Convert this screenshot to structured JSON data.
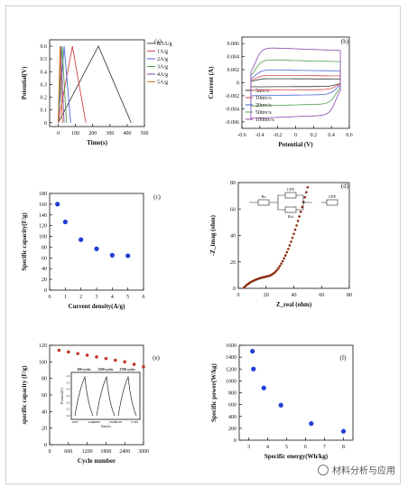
{
  "colors": {
    "dot_red": "#c0392b",
    "dot_blue": "#1f3fd6",
    "dot_brown": "#8b2a0c"
  },
  "watermark": {
    "text": "材料分析与应用",
    "icon": "wechat-icon"
  },
  "chart_data": [
    {
      "type": "line",
      "panel_label": "(a)",
      "xlabel": "Time(s)",
      "ylabel": "Potential(V)",
      "xlim": [
        -50,
        500
      ],
      "ylim": [
        -0.03,
        0.65
      ],
      "xticks": [
        0,
        100,
        200,
        300,
        400,
        500
      ],
      "yticks": [
        0.0,
        0.1,
        0.2,
        0.3,
        0.4,
        0.5,
        0.6
      ],
      "legend": "top-right",
      "series": [
        {
          "name": "0.5A/g",
          "color": "#444444",
          "t_peak": 233,
          "t_end": 423
        },
        {
          "name": "1A/g",
          "color": "#d04444",
          "t_peak": 82,
          "t_end": 160
        },
        {
          "name": "2A/g",
          "color": "#4a64d8",
          "t_peak": 34,
          "t_end": 72
        },
        {
          "name": "3A/g",
          "color": "#4aa04a",
          "t_peak": 22,
          "t_end": 48
        },
        {
          "name": "4A/g",
          "color": "#8e44ad",
          "t_peak": 14,
          "t_end": 34
        },
        {
          "name": "5A/g",
          "color": "#d07a20",
          "t_peak": 10,
          "t_end": 24
        }
      ]
    },
    {
      "type": "line",
      "panel_label": "(b)",
      "xlabel": "Potential (V)",
      "ylabel": "Current (A)",
      "xlim": [
        -0.6,
        0.6
      ],
      "ylim": [
        -0.007,
        0.007
      ],
      "xticks": [
        -0.6,
        -0.4,
        -0.2,
        0.0,
        0.2,
        0.4,
        0.6
      ],
      "yticks": [
        -0.006,
        -0.004,
        -0.002,
        0.0,
        0.002,
        0.004,
        0.006
      ],
      "legend": "bottom-left",
      "series": [
        {
          "name": "5mv/s",
          "color": "#333333",
          "amp": 0.0006
        },
        {
          "name": "10mv/s",
          "color": "#d04444",
          "amp": 0.0011
        },
        {
          "name": "20mv/s",
          "color": "#4a64d8",
          "amp": 0.0019
        },
        {
          "name": "50mv/s",
          "color": "#4aa04a",
          "amp": 0.0034
        },
        {
          "name": "100mv/s",
          "color": "#8e44ad",
          "amp": 0.0052
        }
      ]
    },
    {
      "type": "scatter",
      "panel_label": "(c)",
      "xlabel": "Current density(A/g)",
      "ylabel": "Specific capacity(F/g)",
      "xlim": [
        0,
        6
      ],
      "ylim": [
        0,
        180
      ],
      "xticks": [
        0,
        1,
        2,
        3,
        4,
        5,
        6
      ],
      "yticks": [
        0,
        20,
        40,
        60,
        80,
        100,
        120,
        140,
        160,
        180
      ],
      "series": [
        {
          "x": [
            0.5,
            1,
            2,
            3,
            4,
            5
          ],
          "y": [
            160,
            127,
            94,
            77,
            65,
            64
          ]
        }
      ]
    },
    {
      "type": "scatter",
      "panel_label": "(d)",
      "xlabel": "Z_real (ohm)",
      "ylabel": "-Z_imag (ohm)",
      "xlim": [
        0,
        80
      ],
      "ylim": [
        0,
        80
      ],
      "xticks": [
        0,
        20,
        40,
        60,
        80
      ],
      "yticks": [
        0,
        20,
        40,
        60,
        80
      ],
      "circuit_labels": [
        "Rs",
        "CPE",
        "Rct",
        "CPE"
      ],
      "series": [
        {
          "x": [
            4,
            5,
            6,
            7,
            8,
            9,
            10,
            11,
            12,
            13,
            14,
            15,
            16,
            17,
            18,
            19,
            20,
            21,
            22,
            23,
            24,
            25,
            26,
            27,
            28,
            29,
            30,
            31,
            32,
            33,
            34,
            35,
            36,
            37,
            38,
            39,
            40,
            41,
            42,
            43,
            44,
            45,
            46,
            47,
            48,
            49,
            50,
            51,
            52,
            53,
            54,
            55,
            56,
            57
          ],
          "y": [
            0.5,
            1.5,
            2.5,
            3.3,
            4.0,
            4.7,
            5.3,
            5.8,
            6.3,
            6.7,
            7.1,
            7.5,
            7.8,
            8.1,
            8.4,
            8.6,
            8.9,
            9.1,
            9.4,
            9.8,
            10.3,
            11.0,
            11.8,
            12.8,
            14.0,
            15.4,
            17.0,
            18.7,
            20.6,
            22.7,
            24.9,
            27.3,
            29.8,
            32.5,
            35.3,
            38.2,
            41.2,
            44.4,
            47.6,
            51.0,
            54.4,
            57.9,
            61.5,
            65.2,
            68.9,
            72.7,
            76.5,
            80.0,
            80,
            80,
            80,
            80,
            80,
            80
          ]
        }
      ]
    },
    {
      "type": "scatter",
      "panel_label": "(e)",
      "xlabel": "Cycle number",
      "ylabel": "specific capacity (F/g)",
      "xlim": [
        0,
        3000
      ],
      "ylim": [
        0,
        120
      ],
      "xticks": [
        0,
        600,
        1200,
        1800,
        2400,
        3000
      ],
      "yticks": [
        0,
        20,
        40,
        60,
        80,
        100,
        120
      ],
      "series": [
        {
          "x": [
            300,
            600,
            900,
            1200,
            1500,
            1800,
            2100,
            2400,
            2700,
            3000
          ],
          "y": [
            114,
            112,
            110,
            108,
            106,
            104,
            102,
            100,
            97,
            94
          ]
        }
      ],
      "inset": {
        "xlabel": "Time(s)",
        "ylabel": "Potential(V)",
        "labels": [
          "300 cycles",
          "1500 cycles",
          "2700 cycles"
        ],
        "xticks": [
          "44800",
          "44400",
          "208800",
          "209400",
          "357200",
          "357800"
        ],
        "yticks": [
          "0.0",
          "0.1",
          "0.2",
          "0.3",
          "0.4",
          "0.5",
          "0.6"
        ]
      }
    },
    {
      "type": "scatter",
      "panel_label": "(f)",
      "xlabel": "Specific energy(Wh/kg)",
      "ylabel": "Specific power(W/kg)",
      "xlim": [
        2.5,
        8.5
      ],
      "ylim": [
        0,
        1600
      ],
      "xticks": [
        3,
        4,
        5,
        6,
        7,
        8
      ],
      "yticks": [
        0,
        200,
        400,
        600,
        800,
        1000,
        1200,
        1400,
        1600
      ],
      "series": [
        {
          "x": [
            3.2,
            3.25,
            3.8,
            4.7,
            6.3,
            8.0
          ],
          "y": [
            1500,
            1200,
            880,
            590,
            280,
            150
          ]
        }
      ]
    }
  ]
}
